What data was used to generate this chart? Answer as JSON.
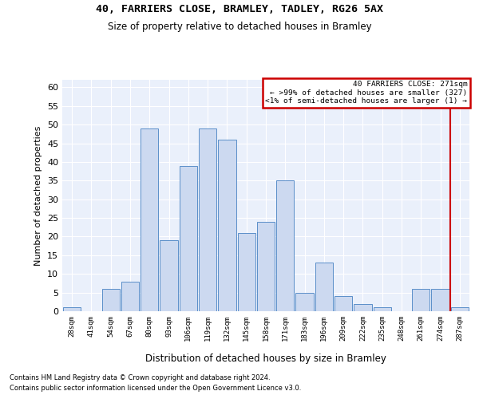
{
  "title": "40, FARRIERS CLOSE, BRAMLEY, TADLEY, RG26 5AX",
  "subtitle": "Size of property relative to detached houses in Bramley",
  "xlabel": "Distribution of detached houses by size in Bramley",
  "ylabel": "Number of detached properties",
  "bin_labels": [
    "28sqm",
    "41sqm",
    "54sqm",
    "67sqm",
    "80sqm",
    "93sqm",
    "106sqm",
    "119sqm",
    "132sqm",
    "145sqm",
    "158sqm",
    "171sqm",
    "183sqm",
    "196sqm",
    "209sqm",
    "222sqm",
    "235sqm",
    "248sqm",
    "261sqm",
    "274sqm",
    "287sqm"
  ],
  "bar_heights": [
    1,
    0,
    6,
    8,
    49,
    19,
    39,
    49,
    46,
    21,
    24,
    35,
    5,
    13,
    4,
    2,
    1,
    0,
    6,
    6,
    1
  ],
  "bar_color": "#ccd9f0",
  "bar_edge_color": "#5b8fc9",
  "property_line_index": 19.5,
  "legend_line1": "40 FARRIERS CLOSE: 271sqm",
  "legend_line2": "← >99% of detached houses are smaller (327)",
  "legend_line3": "<1% of semi-detached houses are larger (1) →",
  "legend_box_color": "#cc0000",
  "vline_color": "#cc0000",
  "ylim": [
    0,
    62
  ],
  "yticks": [
    0,
    5,
    10,
    15,
    20,
    25,
    30,
    35,
    40,
    45,
    50,
    55,
    60
  ],
  "bg_color": "#eaf0fb",
  "grid_color": "#ffffff",
  "footnote1": "Contains HM Land Registry data © Crown copyright and database right 2024.",
  "footnote2": "Contains public sector information licensed under the Open Government Licence v3.0."
}
